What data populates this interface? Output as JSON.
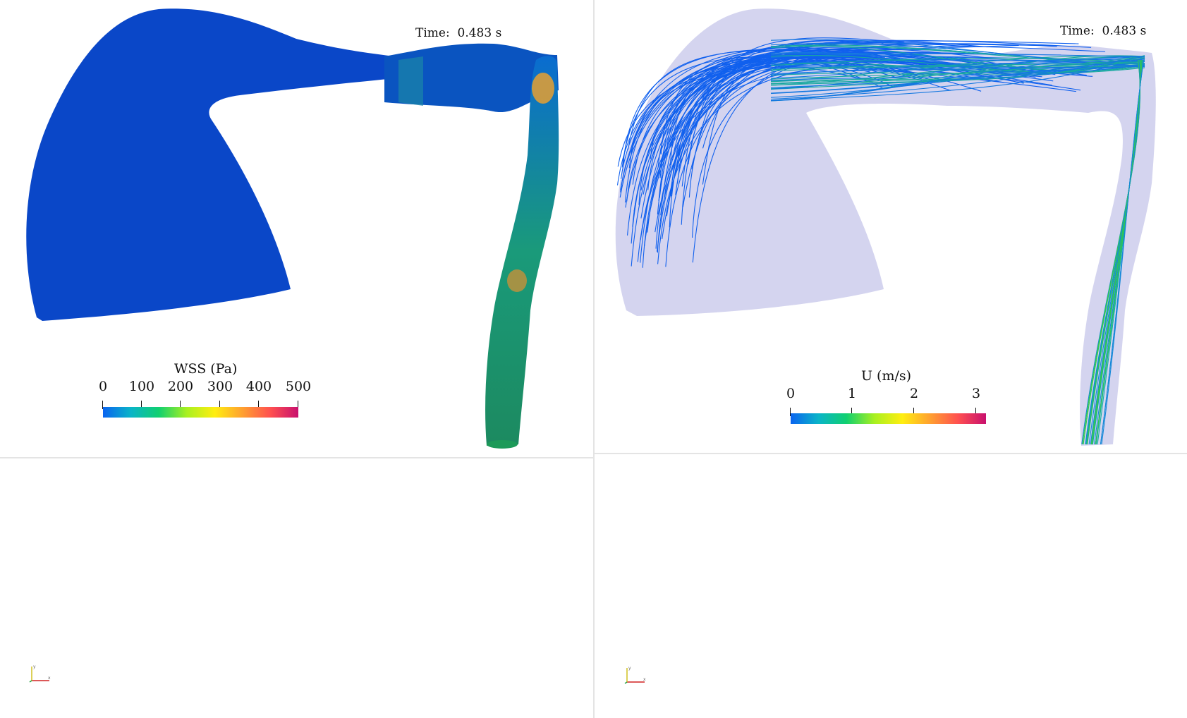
{
  "left_view": {
    "time_label": "Time:",
    "time_value": "0.483 s",
    "colorbar": {
      "title": "WSS (Pa)",
      "ticks": [
        "0",
        "100",
        "200",
        "300",
        "400",
        "500"
      ],
      "range": [
        0,
        500
      ]
    }
  },
  "right_view": {
    "time_label": "Time:",
    "time_value": "0.483 s",
    "colorbar": {
      "title": "U (m/s)",
      "ticks": [
        "0",
        "1",
        "2",
        "3"
      ],
      "range": [
        0,
        3.2
      ]
    }
  },
  "colormap": [
    "#0a64f0",
    "#0ab4c8",
    "#10d070",
    "#a8f020",
    "#ffee10",
    "#ffa030",
    "#ff5050",
    "#c8106e"
  ],
  "surface_color": "#0a47c8",
  "ghost_color": "#d2d2ee",
  "axes_icon": {
    "x_color": "#d02020",
    "y_color": "#d0c020",
    "z_color": "#20a040"
  }
}
